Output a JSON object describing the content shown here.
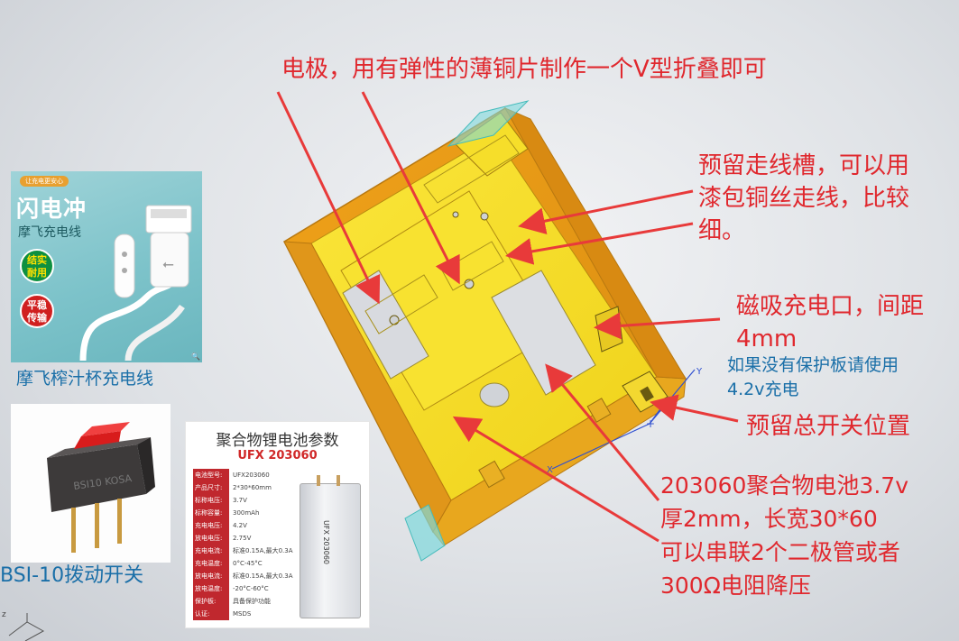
{
  "annotations": {
    "electrode": "电极，用有弹性的薄铜片制作一个V型折叠即可",
    "wire_slot_line1": "预留走线槽，可以用",
    "wire_slot_line2": "漆包铜丝走线，比较",
    "wire_slot_line3": "细。",
    "magnetic_line1": "磁吸充电口，间距",
    "magnetic_line2": "4mm",
    "protection_line1": "如果没有保护板请使用",
    "protection_line2": "4.2v充电",
    "switch_position": "预留总开关位置",
    "battery_line1": "203060聚合物电池3.7v",
    "battery_line2": "厚2mm，长宽30*60",
    "battery_line3": "可以串联2个二极管或者",
    "battery_line4": "300Ω电阻降压"
  },
  "cable_product": {
    "top_tag": "让充电更安心",
    "title": "闪电冲",
    "subtitle": "摩飞充电线",
    "badge1": "结实\n耐用",
    "badge2": "平稳\n传输",
    "caption": "摩飞榨汁杯充电线"
  },
  "switch_product": {
    "caption": "BSI-10拨动开关",
    "engraving": "BSI10 KOSA"
  },
  "battery_product": {
    "title": "聚合物锂电池参数",
    "model": "UFX 203060",
    "params": [
      {
        "key": "电池型号:",
        "value": "UFX203060"
      },
      {
        "key": "产品尺寸:",
        "value": "2*30*60mm"
      },
      {
        "key": "标称电压:",
        "value": "3.7V"
      },
      {
        "key": "标称容量:",
        "value": "300mAh"
      },
      {
        "key": "充电电压:",
        "value": "4.2V"
      },
      {
        "key": "放电电压:",
        "value": "2.75V"
      },
      {
        "key": "充电电流:",
        "value": "标准0.15A,最大0.3A"
      },
      {
        "key": "充电温度:",
        "value": "0°C-45°C"
      },
      {
        "key": "放电电流:",
        "value": "标准0.15A,最大0.3A"
      },
      {
        "key": "放电温度:",
        "value": "-20°C-60°C"
      },
      {
        "key": "保护板:",
        "value": "具备保护功能"
      },
      {
        "key": "认证:",
        "value": "MSDS"
      }
    ],
    "cell_label": "UFX 203060"
  },
  "colors": {
    "annotation_red": "#e0282e",
    "annotation_blue": "#1a6fa8",
    "frame_yellow": "#f5dc1e",
    "frame_orange": "#e8a018"
  }
}
